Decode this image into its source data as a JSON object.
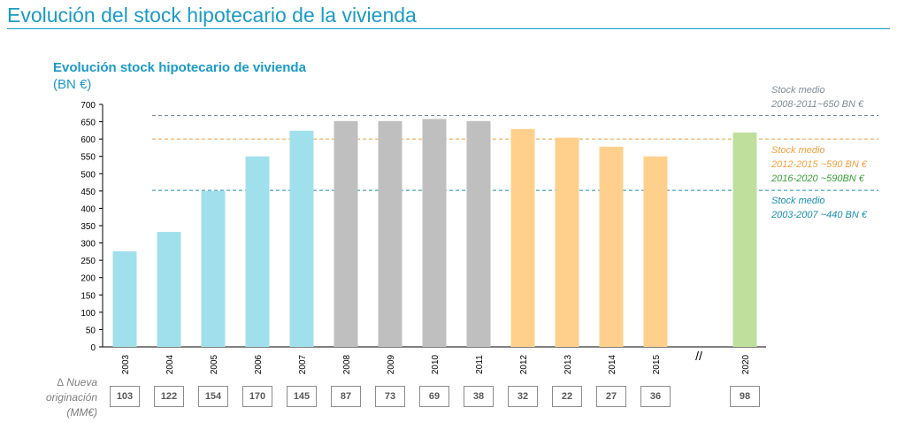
{
  "page_title": "Evolución del stock hipotecario de la vivienda",
  "chart_data": {
    "type": "bar",
    "title": "Evolución stock hipotecario de vivienda",
    "ylabel": "(BN €)",
    "ylim": [
      0,
      700
    ],
    "yticks": [
      0,
      50,
      100,
      150,
      200,
      250,
      300,
      350,
      400,
      450,
      500,
      550,
      600,
      650,
      700
    ],
    "categories": [
      "2003",
      "2004",
      "2005",
      "2006",
      "2007",
      "2008",
      "2009",
      "2010",
      "2011",
      "2012",
      "2013",
      "2014",
      "2015",
      "2020"
    ],
    "values": [
      276,
      332,
      450,
      550,
      624,
      652,
      652,
      658,
      652,
      629,
      604,
      578,
      550,
      619
    ],
    "bar_colors": [
      "#a0e0ec",
      "#a0e0ec",
      "#a0e0ec",
      "#a0e0ec",
      "#a0e0ec",
      "#bfbfbf",
      "#bfbfbf",
      "#bfbfbf",
      "#bfbfbf",
      "#ffd08c",
      "#ffd08c",
      "#ffd08c",
      "#ffd08c",
      "#bfe09c"
    ],
    "axis_break": "//",
    "reference_lines": [
      {
        "value": 668,
        "color": "#7f8c99",
        "lines": [
          "Stock medio",
          "2008-2011~650 BN €"
        ]
      },
      {
        "value": 600,
        "color": "#f0a040",
        "lines": [
          "Stock medio",
          "2012-2015 ~590 BN €"
        ],
        "extra": {
          "text": "2016-2020 ~590BN €",
          "color": "#3aa038"
        }
      },
      {
        "value": 452,
        "color": "#1a8fb5",
        "lines": [
          "Stock medio",
          "2003-2007 ~440 BN €"
        ]
      }
    ],
    "originacion": {
      "label": [
        "∆ Nueva",
        "originación",
        "(MM€)"
      ],
      "values": [
        "103",
        "122",
        "154",
        "170",
        "145",
        "87",
        "73",
        "69",
        "38",
        "32",
        "22",
        "27",
        "36",
        "98"
      ]
    }
  }
}
